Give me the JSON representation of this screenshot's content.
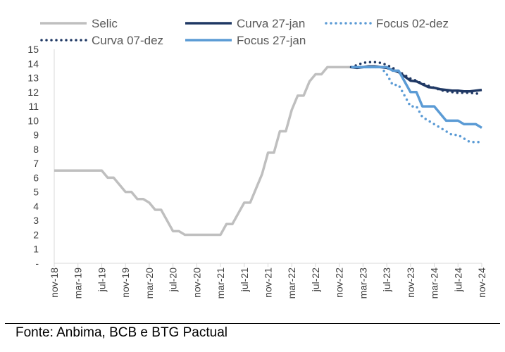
{
  "chart_data": {
    "type": "line",
    "title": "",
    "xlabel": "",
    "ylabel": "",
    "ylim": [
      0,
      15
    ],
    "y_ticks": [
      "-",
      "1",
      "2",
      "3",
      "4",
      "5",
      "6",
      "7",
      "8",
      "9",
      "10",
      "11",
      "12",
      "13",
      "14",
      "15"
    ],
    "x_ticks": [
      "nov-18",
      "mar-19",
      "jul-19",
      "nov-19",
      "mar-20",
      "jul-20",
      "nov-20",
      "mar-21",
      "jul-21",
      "nov-21",
      "mar-22",
      "jul-22",
      "nov-22",
      "mar-23",
      "jul-23",
      "nov-23",
      "mar-24",
      "jul-24",
      "nov-24"
    ],
    "x_range": [
      "2018-11",
      "2024-11"
    ],
    "grid": false,
    "legend_position": "top",
    "series": [
      {
        "name": "Selic",
        "color": "#BFBFBF",
        "style": "solid",
        "points": [
          [
            "2018-11",
            6.5
          ],
          [
            "2019-07",
            6.5
          ],
          [
            "2019-08",
            6.0
          ],
          [
            "2019-09",
            6.0
          ],
          [
            "2019-10",
            5.5
          ],
          [
            "2019-11",
            5.0
          ],
          [
            "2019-12",
            5.0
          ],
          [
            "2020-01",
            4.5
          ],
          [
            "2020-02",
            4.5
          ],
          [
            "2020-03",
            4.25
          ],
          [
            "2020-04",
            3.75
          ],
          [
            "2020-05",
            3.75
          ],
          [
            "2020-06",
            3.0
          ],
          [
            "2020-07",
            2.25
          ],
          [
            "2020-08",
            2.25
          ],
          [
            "2020-09",
            2.0
          ],
          [
            "2021-03",
            2.0
          ],
          [
            "2021-04",
            2.75
          ],
          [
            "2021-05",
            2.75
          ],
          [
            "2021-06",
            3.5
          ],
          [
            "2021-07",
            4.25
          ],
          [
            "2021-08",
            4.25
          ],
          [
            "2021-09",
            5.25
          ],
          [
            "2021-10",
            6.25
          ],
          [
            "2021-11",
            7.75
          ],
          [
            "2021-12",
            7.75
          ],
          [
            "2022-01",
            9.25
          ],
          [
            "2022-02",
            9.25
          ],
          [
            "2022-03",
            10.75
          ],
          [
            "2022-04",
            11.75
          ],
          [
            "2022-05",
            11.75
          ],
          [
            "2022-06",
            12.75
          ],
          [
            "2022-07",
            13.25
          ],
          [
            "2022-08",
            13.25
          ],
          [
            "2022-09",
            13.75
          ],
          [
            "2023-01",
            13.75
          ]
        ]
      },
      {
        "name": "Curva 27-jan",
        "color": "#1F3864",
        "style": "solid",
        "points": [
          [
            "2023-01",
            13.75
          ],
          [
            "2023-02",
            13.7
          ],
          [
            "2023-03",
            13.75
          ],
          [
            "2023-04",
            13.8
          ],
          [
            "2023-05",
            13.8
          ],
          [
            "2023-06",
            13.75
          ],
          [
            "2023-07",
            13.7
          ],
          [
            "2023-08",
            13.55
          ],
          [
            "2023-09",
            13.4
          ],
          [
            "2023-10",
            13.1
          ],
          [
            "2023-11",
            12.8
          ],
          [
            "2023-12",
            12.75
          ],
          [
            "2024-01",
            12.55
          ],
          [
            "2024-02",
            12.35
          ],
          [
            "2024-03",
            12.3
          ],
          [
            "2024-04",
            12.2
          ],
          [
            "2024-05",
            12.15
          ],
          [
            "2024-06",
            12.1
          ],
          [
            "2024-07",
            12.1
          ],
          [
            "2024-08",
            12.05
          ],
          [
            "2024-09",
            12.05
          ],
          [
            "2024-10",
            12.1
          ],
          [
            "2024-11",
            12.15
          ]
        ]
      },
      {
        "name": "Focus 02-dez",
        "color": "#5B9BD5",
        "style": "dotted",
        "points": [
          [
            "2023-01",
            13.75
          ],
          [
            "2023-06",
            13.75
          ],
          [
            "2023-07",
            13.25
          ],
          [
            "2023-08",
            12.5
          ],
          [
            "2023-09",
            12.5
          ],
          [
            "2023-10",
            11.75
          ],
          [
            "2023-11",
            11.0
          ],
          [
            "2023-12",
            11.0
          ],
          [
            "2024-01",
            10.25
          ],
          [
            "2024-02",
            10.0
          ],
          [
            "2024-03",
            9.75
          ],
          [
            "2024-04",
            9.5
          ],
          [
            "2024-05",
            9.25
          ],
          [
            "2024-06",
            9.0
          ],
          [
            "2024-07",
            9.0
          ],
          [
            "2024-08",
            8.75
          ],
          [
            "2024-09",
            8.5
          ],
          [
            "2024-10",
            8.5
          ],
          [
            "2024-11",
            8.5
          ]
        ]
      },
      {
        "name": "Curva 07-dez",
        "color": "#1F3864",
        "style": "dotted",
        "points": [
          [
            "2023-01",
            13.75
          ],
          [
            "2023-02",
            13.9
          ],
          [
            "2023-03",
            14.05
          ],
          [
            "2023-04",
            14.1
          ],
          [
            "2023-05",
            14.1
          ],
          [
            "2023-06",
            14.05
          ],
          [
            "2023-07",
            13.9
          ],
          [
            "2023-08",
            13.7
          ],
          [
            "2023-09",
            13.45
          ],
          [
            "2023-10",
            13.2
          ],
          [
            "2023-11",
            12.95
          ],
          [
            "2023-12",
            12.8
          ],
          [
            "2024-01",
            12.6
          ],
          [
            "2024-02",
            12.45
          ],
          [
            "2024-03",
            12.3
          ],
          [
            "2024-04",
            12.15
          ],
          [
            "2024-05",
            12.05
          ],
          [
            "2024-06",
            12.0
          ],
          [
            "2024-07",
            11.95
          ],
          [
            "2024-08",
            11.95
          ],
          [
            "2024-09",
            11.95
          ],
          [
            "2024-10",
            11.9
          ],
          [
            "2024-11",
            11.9
          ]
        ]
      },
      {
        "name": "Focus 27-jan",
        "color": "#5B9BD5",
        "style": "solid",
        "points": [
          [
            "2023-01",
            13.75
          ],
          [
            "2023-07",
            13.75
          ],
          [
            "2023-08",
            13.5
          ],
          [
            "2023-09",
            13.5
          ],
          [
            "2023-10",
            12.75
          ],
          [
            "2023-11",
            12.0
          ],
          [
            "2023-12",
            12.0
          ],
          [
            "2024-01",
            11.0
          ],
          [
            "2024-02",
            11.0
          ],
          [
            "2024-03",
            11.0
          ],
          [
            "2024-04",
            10.5
          ],
          [
            "2024-05",
            10.0
          ],
          [
            "2024-06",
            10.0
          ],
          [
            "2024-07",
            10.0
          ],
          [
            "2024-08",
            9.75
          ],
          [
            "2024-09",
            9.75
          ],
          [
            "2024-10",
            9.75
          ],
          [
            "2024-11",
            9.5
          ]
        ]
      }
    ]
  },
  "source": "Fonte: Anbima, BCB e BTG Pactual"
}
